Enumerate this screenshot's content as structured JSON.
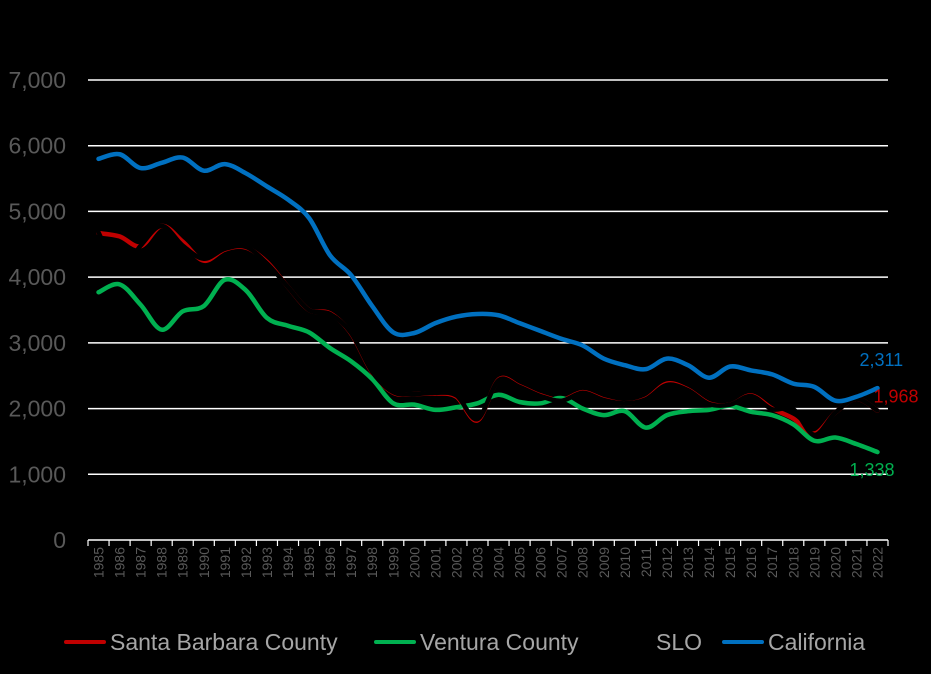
{
  "chart_data": {
    "type": "line",
    "title": "",
    "xlabel": "",
    "ylabel": "",
    "ylim": [
      0,
      7000
    ],
    "yticks": [
      0,
      1000,
      2000,
      3000,
      4000,
      5000,
      6000,
      7000
    ],
    "ytick_labels": [
      "0",
      "1,000",
      "2,000",
      "3,000",
      "4,000",
      "5,000",
      "6,000",
      "7,000"
    ],
    "grid": true,
    "legend_position": "bottom",
    "categories": [
      "1985",
      "1986",
      "1987",
      "1988",
      "1989",
      "1990",
      "1991",
      "1992",
      "1993",
      "1994",
      "1995",
      "1996",
      "1997",
      "1998",
      "1999",
      "2000",
      "2001",
      "2002",
      "2003",
      "2004",
      "2005",
      "2006",
      "2007",
      "2008",
      "2009",
      "2010",
      "2011",
      "2012",
      "2013",
      "2014",
      "2015",
      "2016",
      "2017",
      "2018",
      "2019",
      "2020",
      "2021",
      "2022"
    ],
    "series": [
      {
        "name": "Santa Barbara County",
        "color": "#c00000",
        "values": [
          4670,
          4620,
          4470,
          4780,
          4540,
          4250,
          4420,
          4450,
          4230,
          3850,
          3500,
          3450,
          3140,
          2550,
          2240,
          2220,
          2230,
          2180,
          1820,
          2440,
          2340,
          2200,
          2130,
          2250,
          2140,
          2080,
          2150,
          2380,
          2290,
          2080,
          2060,
          2200,
          2000,
          1850,
          1620,
          1940,
          2150,
          1968
        ],
        "end_label": "1,968"
      },
      {
        "name": "Ventura County",
        "color": "#00b050",
        "values": [
          3770,
          3890,
          3580,
          3200,
          3480,
          3560,
          3960,
          3800,
          3380,
          3260,
          3160,
          2920,
          2720,
          2450,
          2080,
          2060,
          1980,
          2020,
          2080,
          2210,
          2100,
          2080,
          2160,
          2000,
          1900,
          1960,
          1710,
          1900,
          1960,
          1980,
          2040,
          1950,
          1900,
          1760,
          1510,
          1560,
          1460,
          1338
        ],
        "end_label": "1,338"
      },
      {
        "name": "SLO",
        "color": "#000000",
        "values": [
          4680,
          4090,
          4480,
          4780,
          4480,
          4280,
          4430,
          4460,
          4210,
          3850,
          3500,
          3440,
          3150,
          2560,
          2250,
          2220,
          2240,
          2200,
          1840,
          2430,
          2330,
          2190,
          2120,
          2240,
          2130,
          2080,
          2140,
          2360,
          2280,
          2070,
          2060,
          2190,
          1990,
          1990,
          1600,
          1940,
          2150,
          1970
        ]
      },
      {
        "name": "California",
        "color": "#0070c0",
        "values": [
          5800,
          5870,
          5660,
          5740,
          5820,
          5620,
          5720,
          5580,
          5380,
          5180,
          4900,
          4330,
          4030,
          3560,
          3160,
          3150,
          3300,
          3400,
          3440,
          3420,
          3300,
          3180,
          3060,
          2960,
          2760,
          2660,
          2600,
          2760,
          2660,
          2470,
          2640,
          2580,
          2520,
          2380,
          2330,
          2120,
          2180,
          2311
        ],
        "end_label": "2,311"
      }
    ]
  }
}
